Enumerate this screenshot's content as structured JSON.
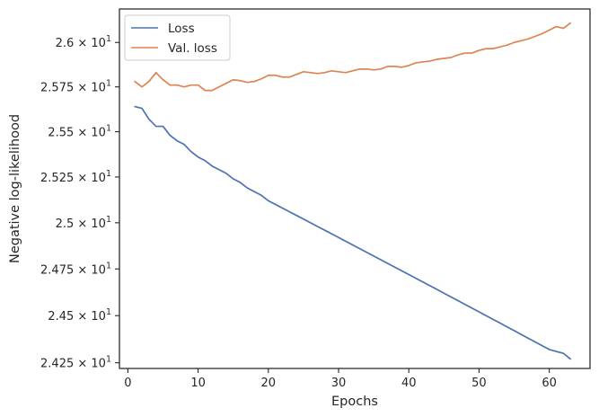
{
  "chart_data": {
    "type": "line",
    "xlabel": "Epochs",
    "ylabel": "Negative log-likelihood",
    "xlim": [
      -1.2,
      65.8
    ],
    "ylim": [
      24.22,
      26.19
    ],
    "x_ticks": [
      0,
      10,
      20,
      30,
      40,
      50,
      60
    ],
    "y_ticks": [
      {
        "value": 24.25,
        "mantissa": "2.425",
        "times": "×",
        "base": "10",
        "exponent": "1"
      },
      {
        "value": 24.5,
        "mantissa": "2.45",
        "times": "×",
        "base": "10",
        "exponent": "1"
      },
      {
        "value": 24.75,
        "mantissa": "2.475",
        "times": "×",
        "base": "10",
        "exponent": "1"
      },
      {
        "value": 25.0,
        "mantissa": "2.5",
        "times": "×",
        "base": "10",
        "exponent": "1"
      },
      {
        "value": 25.25,
        "mantissa": "2.525",
        "times": "×",
        "base": "10",
        "exponent": "1"
      },
      {
        "value": 25.5,
        "mantissa": "2.55",
        "times": "×",
        "base": "10",
        "exponent": "1"
      },
      {
        "value": 25.75,
        "mantissa": "2.575",
        "times": "×",
        "base": "10",
        "exponent": "1"
      },
      {
        "value": 26.0,
        "mantissa": "2.6",
        "times": "×",
        "base": "10",
        "exponent": "1"
      }
    ],
    "y_scale": "log",
    "grid": false,
    "legend_position": "top-left",
    "series": [
      {
        "name": "Loss",
        "color": "#4c72b0",
        "x": [
          1,
          2,
          3,
          4,
          5,
          6,
          7,
          8,
          9,
          10,
          11,
          12,
          13,
          14,
          15,
          16,
          17,
          18,
          19,
          20,
          21,
          22,
          23,
          24,
          25,
          26,
          27,
          28,
          29,
          30,
          31,
          32,
          33,
          34,
          35,
          36,
          37,
          38,
          39,
          40,
          41,
          42,
          43,
          44,
          45,
          46,
          47,
          48,
          49,
          50,
          51,
          52,
          53,
          54,
          55,
          56,
          57,
          58,
          59,
          60,
          61,
          62,
          63
        ],
        "values": [
          25.64,
          25.63,
          25.57,
          25.53,
          25.53,
          25.48,
          25.45,
          25.43,
          25.39,
          25.36,
          25.34,
          25.31,
          25.29,
          25.27,
          25.24,
          25.22,
          25.19,
          25.17,
          25.15,
          25.12,
          25.1,
          25.08,
          25.06,
          25.04,
          25.02,
          25.0,
          24.98,
          24.96,
          24.94,
          24.92,
          24.9,
          24.88,
          24.86,
          24.84,
          24.82,
          24.8,
          24.78,
          24.76,
          24.74,
          24.72,
          24.7,
          24.68,
          24.66,
          24.64,
          24.62,
          24.6,
          24.58,
          24.56,
          24.54,
          24.52,
          24.5,
          24.48,
          24.46,
          24.44,
          24.42,
          24.4,
          24.38,
          24.36,
          24.34,
          24.32,
          24.31,
          24.3,
          24.27
        ]
      },
      {
        "name": "Val. loss",
        "color": "#dd8452",
        "x": [
          1,
          2,
          3,
          4,
          5,
          6,
          7,
          8,
          9,
          10,
          11,
          12,
          13,
          14,
          15,
          16,
          17,
          18,
          19,
          20,
          21,
          22,
          23,
          24,
          25,
          26,
          27,
          28,
          29,
          30,
          31,
          32,
          33,
          34,
          35,
          36,
          37,
          38,
          39,
          40,
          41,
          42,
          43,
          44,
          45,
          46,
          47,
          48,
          49,
          50,
          51,
          52,
          53,
          54,
          55,
          56,
          57,
          58,
          59,
          60,
          61,
          62,
          63
        ],
        "values": [
          25.78,
          25.75,
          25.78,
          25.83,
          25.79,
          25.76,
          25.76,
          25.75,
          25.76,
          25.76,
          25.73,
          25.73,
          25.75,
          25.77,
          25.79,
          25.785,
          25.775,
          25.78,
          25.795,
          25.815,
          25.815,
          25.805,
          25.805,
          25.82,
          25.835,
          25.83,
          25.825,
          25.83,
          25.84,
          25.835,
          25.83,
          25.84,
          25.85,
          25.85,
          25.845,
          25.85,
          25.865,
          25.865,
          25.86,
          25.87,
          25.885,
          25.89,
          25.895,
          25.905,
          25.91,
          25.915,
          25.93,
          25.94,
          25.94,
          25.955,
          25.965,
          25.965,
          25.975,
          25.985,
          26.0,
          26.01,
          26.02,
          26.035,
          26.05,
          26.07,
          26.09,
          26.08,
          26.11
        ]
      }
    ]
  }
}
